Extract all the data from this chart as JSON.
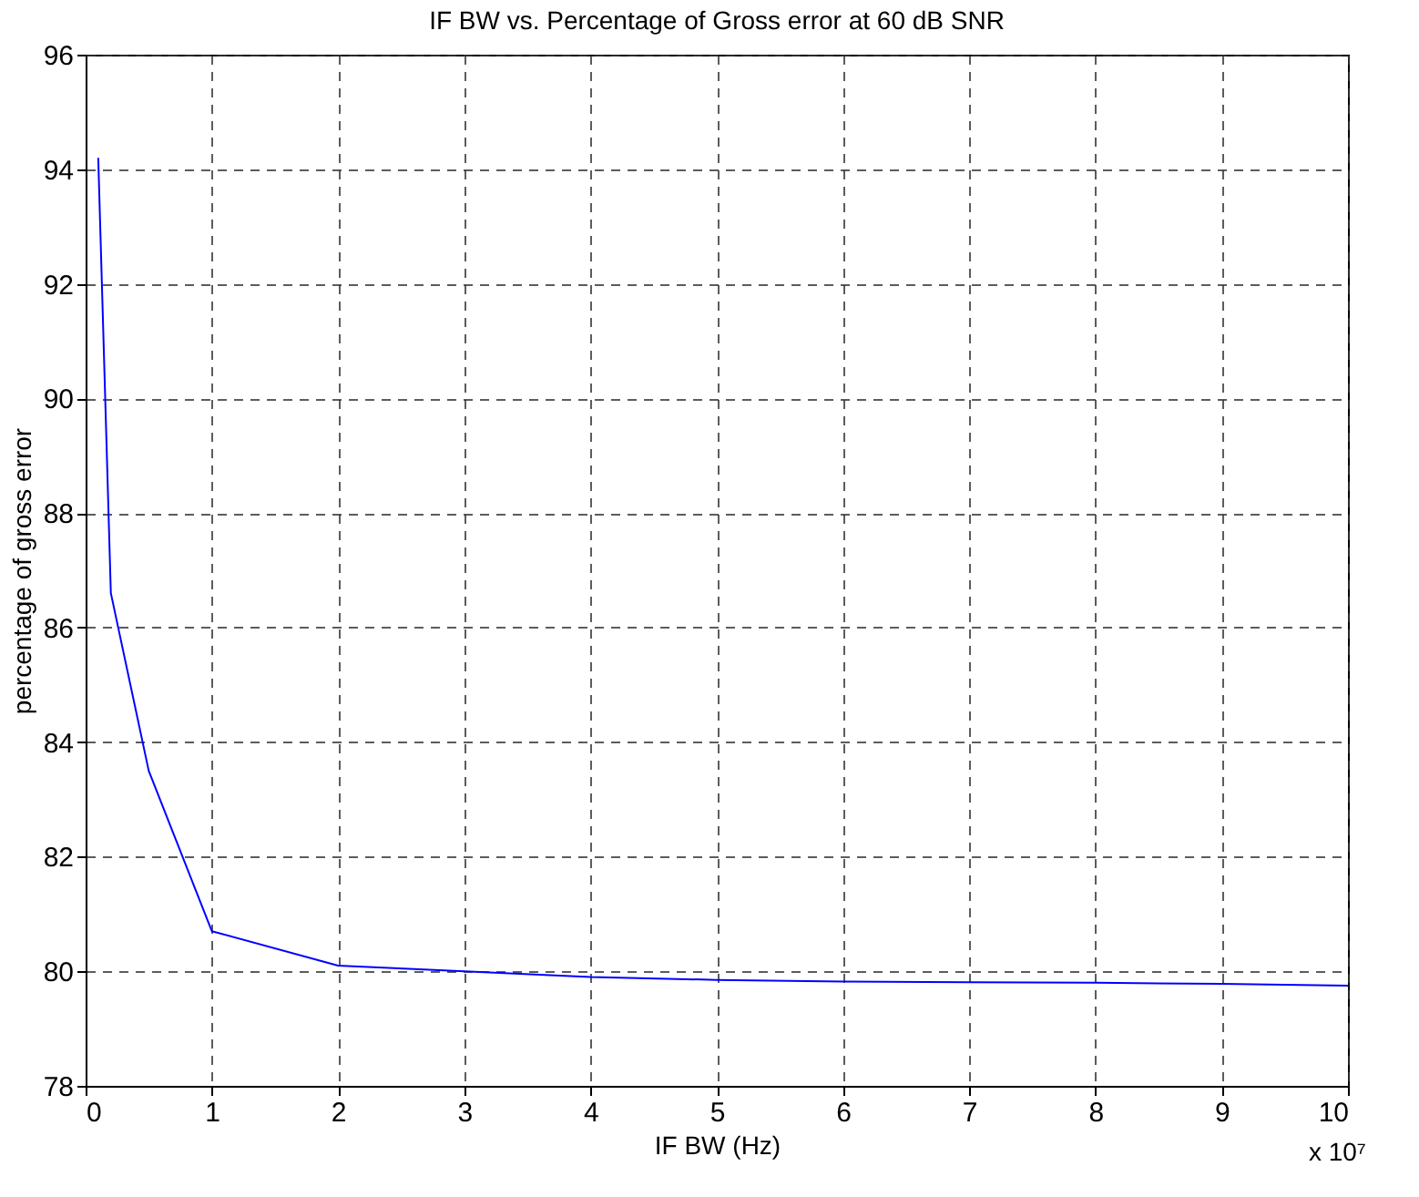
{
  "chart_data": {
    "type": "line",
    "title": "IF BW vs. Percentage of Gross error at 60 dB SNR",
    "xlabel": "IF BW (Hz)",
    "ylabel": "percentage of gross error",
    "x": [
      0.1,
      0.2,
      0.5,
      1,
      2,
      3,
      4,
      5,
      6,
      7,
      8,
      9,
      10
    ],
    "series": [
      {
        "color": "#0000ff",
        "values": [
          94.2,
          86.6,
          83.5,
          80.7,
          80.1,
          80.0,
          79.9,
          79.85,
          79.82,
          79.81,
          79.8,
          79.78,
          79.75
        ]
      }
    ],
    "xlim": [
      0,
      10
    ],
    "xticks": [
      0,
      1,
      2,
      3,
      4,
      5,
      6,
      7,
      8,
      9,
      10
    ],
    "ylim": [
      78,
      96
    ],
    "yticks": [
      78,
      80,
      82,
      84,
      86,
      88,
      90,
      92,
      94,
      96
    ],
    "grid": true,
    "line_style": "solid",
    "marker": "none",
    "annotations": [
      "x 10⁷"
    ]
  }
}
